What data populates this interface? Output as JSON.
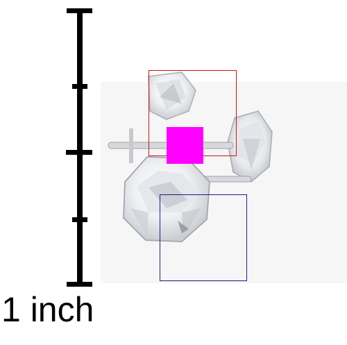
{
  "scale": {
    "label": "1 inch"
  },
  "colors": {
    "scale_bar": "#000000",
    "box_red": "#d01010",
    "box_blue": "#1c1c8c",
    "marker": "#ff00ff"
  }
}
